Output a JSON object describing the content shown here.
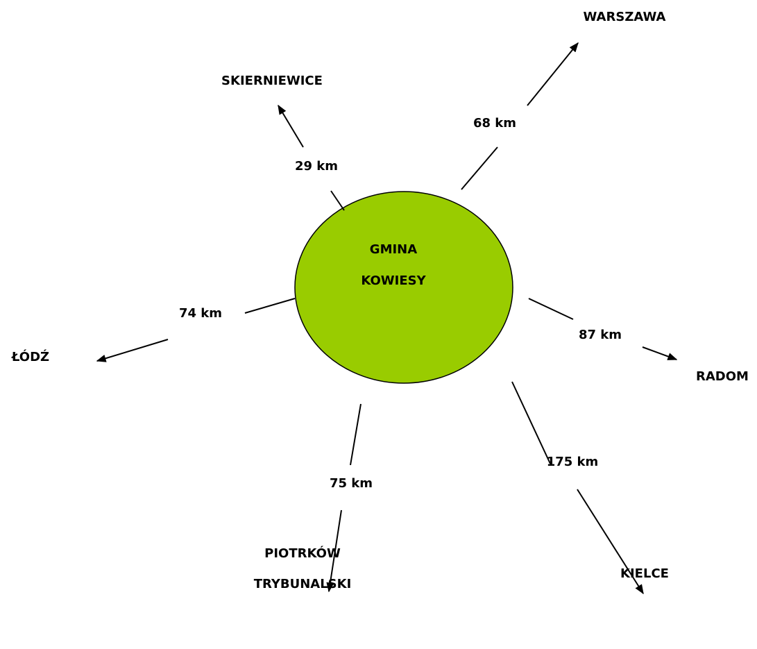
{
  "center": {
    "lines": [
      "GMINA",
      "KOWIESY"
    ]
  },
  "destinations": [
    {
      "name": [
        "WARSZAWA"
      ],
      "distance": "68 km"
    },
    {
      "name": [
        "SKIERNIEWICE"
      ],
      "distance": "29 km"
    },
    {
      "name": [
        "ŁÓDŹ"
      ],
      "distance": "74 km"
    },
    {
      "name": [
        "RADOM"
      ],
      "distance": "87 km"
    },
    {
      "name": [
        "PIOTRKÓW",
        "TRYBUNALSKI"
      ],
      "distance": "75 km"
    },
    {
      "name": [
        "KIELCE"
      ],
      "distance": "175 km"
    }
  ]
}
